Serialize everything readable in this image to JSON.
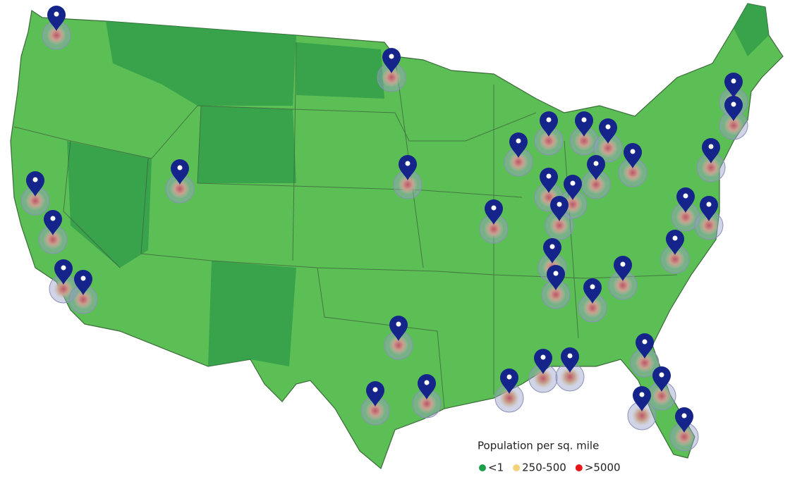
{
  "legend": {
    "title": "Population per sq. mile",
    "items": [
      {
        "label": "<1",
        "color": "#1e9e4a"
      },
      {
        "label": "250-500",
        "color": "#f2d27a"
      },
      {
        "label": ">5000",
        "color": "#e8141a"
      }
    ]
  }
}
